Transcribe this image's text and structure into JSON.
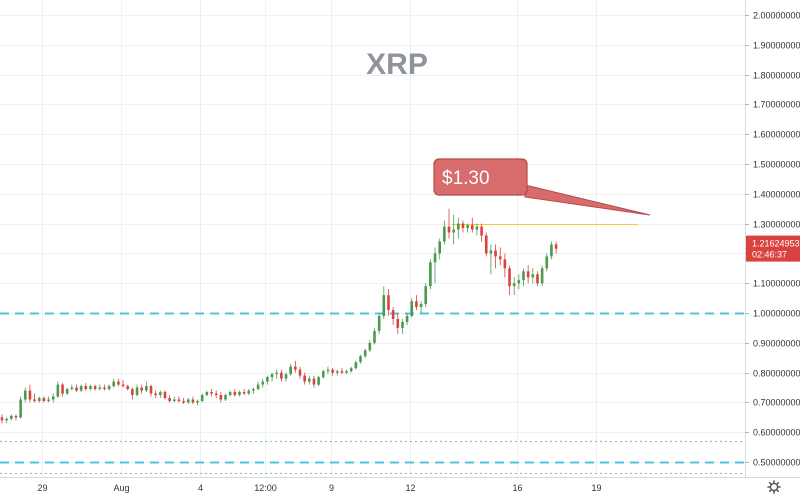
{
  "chart_data": {
    "type": "candlestick",
    "title": "XRP",
    "ylim": [
      0.45,
      2.05
    ],
    "y_ticks": [
      "2.00000000",
      "1.90000000",
      "1.80000000",
      "1.70000000",
      "1.60000000",
      "1.50000000",
      "1.40000000",
      "1.30000000",
      "1.20000000",
      "1.10000000",
      "1.00000000",
      "0.90000000",
      "0.80000000",
      "0.70000000",
      "0.60000000",
      "0.50000000"
    ],
    "x_ticks": [
      {
        "label": "29",
        "at": 9
      },
      {
        "label": "Aug",
        "at": 26
      },
      {
        "label": "4",
        "at": 43
      },
      {
        "label": "12:00",
        "at": 57
      },
      {
        "label": "9",
        "at": 71
      },
      {
        "label": "12",
        "at": 88
      },
      {
        "label": "16",
        "at": 111
      },
      {
        "label": "19",
        "at": 128
      }
    ],
    "x_range": [
      0,
      160
    ],
    "candles": [
      [
        0.65,
        0.66,
        0.63,
        0.64
      ],
      [
        0.64,
        0.65,
        0.63,
        0.645
      ],
      [
        0.645,
        0.66,
        0.64,
        0.655
      ],
      [
        0.655,
        0.66,
        0.64,
        0.65
      ],
      [
        0.65,
        0.72,
        0.645,
        0.71
      ],
      [
        0.71,
        0.75,
        0.7,
        0.74
      ],
      [
        0.74,
        0.76,
        0.7,
        0.71
      ],
      [
        0.71,
        0.73,
        0.7,
        0.705
      ],
      [
        0.705,
        0.72,
        0.7,
        0.715
      ],
      [
        0.715,
        0.72,
        0.7,
        0.705
      ],
      [
        0.705,
        0.72,
        0.7,
        0.71
      ],
      [
        0.71,
        0.73,
        0.7,
        0.72
      ],
      [
        0.72,
        0.77,
        0.715,
        0.76
      ],
      [
        0.76,
        0.765,
        0.72,
        0.73
      ],
      [
        0.73,
        0.75,
        0.725,
        0.745
      ],
      [
        0.745,
        0.76,
        0.74,
        0.75
      ],
      [
        0.75,
        0.76,
        0.735,
        0.74
      ],
      [
        0.74,
        0.76,
        0.735,
        0.755
      ],
      [
        0.755,
        0.765,
        0.74,
        0.745
      ],
      [
        0.745,
        0.76,
        0.74,
        0.755
      ],
      [
        0.755,
        0.76,
        0.74,
        0.745
      ],
      [
        0.745,
        0.76,
        0.74,
        0.75
      ],
      [
        0.75,
        0.76,
        0.74,
        0.745
      ],
      [
        0.745,
        0.76,
        0.74,
        0.755
      ],
      [
        0.755,
        0.78,
        0.75,
        0.77
      ],
      [
        0.77,
        0.78,
        0.755,
        0.76
      ],
      [
        0.76,
        0.775,
        0.75,
        0.755
      ],
      [
        0.755,
        0.76,
        0.74,
        0.745
      ],
      [
        0.745,
        0.75,
        0.71,
        0.725
      ],
      [
        0.725,
        0.76,
        0.72,
        0.75
      ],
      [
        0.75,
        0.76,
        0.73,
        0.74
      ],
      [
        0.74,
        0.77,
        0.735,
        0.755
      ],
      [
        0.755,
        0.76,
        0.72,
        0.73
      ],
      [
        0.73,
        0.74,
        0.715,
        0.725
      ],
      [
        0.725,
        0.74,
        0.715,
        0.735
      ],
      [
        0.735,
        0.74,
        0.71,
        0.715
      ],
      [
        0.715,
        0.725,
        0.7,
        0.705
      ],
      [
        0.705,
        0.72,
        0.7,
        0.71
      ],
      [
        0.71,
        0.72,
        0.7,
        0.705
      ],
      [
        0.705,
        0.715,
        0.695,
        0.7
      ],
      [
        0.7,
        0.715,
        0.695,
        0.71
      ],
      [
        0.71,
        0.72,
        0.695,
        0.7
      ],
      [
        0.7,
        0.71,
        0.69,
        0.705
      ],
      [
        0.705,
        0.73,
        0.7,
        0.725
      ],
      [
        0.725,
        0.74,
        0.72,
        0.735
      ],
      [
        0.735,
        0.745,
        0.72,
        0.73
      ],
      [
        0.73,
        0.74,
        0.715,
        0.725
      ],
      [
        0.725,
        0.735,
        0.7,
        0.71
      ],
      [
        0.71,
        0.73,
        0.705,
        0.725
      ],
      [
        0.725,
        0.74,
        0.72,
        0.735
      ],
      [
        0.735,
        0.745,
        0.72,
        0.725
      ],
      [
        0.725,
        0.74,
        0.72,
        0.735
      ],
      [
        0.735,
        0.745,
        0.725,
        0.73
      ],
      [
        0.73,
        0.745,
        0.725,
        0.74
      ],
      [
        0.74,
        0.75,
        0.73,
        0.745
      ],
      [
        0.745,
        0.77,
        0.74,
        0.76
      ],
      [
        0.76,
        0.78,
        0.75,
        0.77
      ],
      [
        0.77,
        0.79,
        0.76,
        0.785
      ],
      [
        0.785,
        0.8,
        0.77,
        0.795
      ],
      [
        0.795,
        0.81,
        0.78,
        0.8
      ],
      [
        0.8,
        0.81,
        0.77,
        0.78
      ],
      [
        0.78,
        0.8,
        0.77,
        0.795
      ],
      [
        0.795,
        0.83,
        0.79,
        0.82
      ],
      [
        0.82,
        0.84,
        0.8,
        0.81
      ],
      [
        0.81,
        0.82,
        0.78,
        0.79
      ],
      [
        0.79,
        0.8,
        0.76,
        0.77
      ],
      [
        0.77,
        0.79,
        0.76,
        0.78
      ],
      [
        0.78,
        0.79,
        0.75,
        0.76
      ],
      [
        0.76,
        0.79,
        0.755,
        0.785
      ],
      [
        0.785,
        0.81,
        0.78,
        0.805
      ],
      [
        0.805,
        0.82,
        0.795,
        0.81
      ],
      [
        0.81,
        0.815,
        0.79,
        0.8
      ],
      [
        0.8,
        0.81,
        0.79,
        0.805
      ],
      [
        0.805,
        0.815,
        0.795,
        0.8
      ],
      [
        0.8,
        0.81,
        0.795,
        0.805
      ],
      [
        0.805,
        0.82,
        0.8,
        0.815
      ],
      [
        0.815,
        0.84,
        0.81,
        0.835
      ],
      [
        0.835,
        0.86,
        0.83,
        0.855
      ],
      [
        0.855,
        0.88,
        0.85,
        0.875
      ],
      [
        0.875,
        0.91,
        0.87,
        0.9
      ],
      [
        0.9,
        0.95,
        0.895,
        0.94
      ],
      [
        0.94,
        1.0,
        0.93,
        0.99
      ],
      [
        0.99,
        1.09,
        0.98,
        1.06
      ],
      [
        1.06,
        1.08,
        0.99,
        1.01
      ],
      [
        1.01,
        1.02,
        0.96,
        0.98
      ],
      [
        0.98,
        1.0,
        0.93,
        0.95
      ],
      [
        0.95,
        0.98,
        0.93,
        0.97
      ],
      [
        0.97,
        1.0,
        0.96,
        0.99
      ],
      [
        0.99,
        1.05,
        0.985,
        1.04
      ],
      [
        1.04,
        1.06,
        1.01,
        1.02
      ],
      [
        1.02,
        1.04,
        1.0,
        1.03
      ],
      [
        1.03,
        1.1,
        1.02,
        1.09
      ],
      [
        1.09,
        1.18,
        1.08,
        1.17
      ],
      [
        1.17,
        1.22,
        1.1,
        1.2
      ],
      [
        1.2,
        1.25,
        1.18,
        1.24
      ],
      [
        1.24,
        1.31,
        1.23,
        1.29
      ],
      [
        1.29,
        1.35,
        1.25,
        1.27
      ],
      [
        1.27,
        1.33,
        1.23,
        1.28
      ],
      [
        1.28,
        1.32,
        1.25,
        1.3
      ],
      [
        1.3,
        1.31,
        1.27,
        1.285
      ],
      [
        1.285,
        1.3,
        1.27,
        1.295
      ],
      [
        1.295,
        1.32,
        1.27,
        1.28
      ],
      [
        1.28,
        1.3,
        1.26,
        1.29
      ],
      [
        1.29,
        1.3,
        1.24,
        1.26
      ],
      [
        1.26,
        1.27,
        1.19,
        1.2
      ],
      [
        1.2,
        1.23,
        1.13,
        1.21
      ],
      [
        1.21,
        1.23,
        1.15,
        1.19
      ],
      [
        1.19,
        1.22,
        1.16,
        1.18
      ],
      [
        1.18,
        1.2,
        1.12,
        1.15
      ],
      [
        1.15,
        1.16,
        1.06,
        1.09
      ],
      [
        1.09,
        1.12,
        1.06,
        1.1
      ],
      [
        1.1,
        1.13,
        1.08,
        1.11
      ],
      [
        1.11,
        1.15,
        1.09,
        1.14
      ],
      [
        1.14,
        1.16,
        1.1,
        1.12
      ],
      [
        1.12,
        1.15,
        1.1,
        1.13
      ],
      [
        1.13,
        1.14,
        1.09,
        1.1
      ],
      [
        1.1,
        1.16,
        1.09,
        1.15
      ],
      [
        1.15,
        1.2,
        1.14,
        1.19
      ],
      [
        1.19,
        1.24,
        1.18,
        1.23
      ],
      [
        1.23,
        1.24,
        1.2,
        1.216
      ]
    ],
    "colors": {
      "up": "#26a69a",
      "down": "#ef5350",
      "up_body": "#4c9a4e",
      "down_body": "#d9423f"
    },
    "horizontal_lines": [
      {
        "value": 1.0,
        "style": "dashed",
        "color": "#4fc3e6"
      },
      {
        "value": 0.5,
        "style": "dashed",
        "color": "#4fc3e6"
      },
      {
        "value": 0.57,
        "style": "dotted",
        "color": "#7bbfc9"
      },
      {
        "value": 0.465,
        "style": "dotted",
        "color": "#7bbfc9"
      }
    ],
    "resistance_line": {
      "value": 1.3,
      "color": "#f5c842",
      "from": 97,
      "to": 137
    },
    "callout": {
      "text": "$1.30",
      "color": "#d86b6b",
      "border": "#b34a4a"
    },
    "price_label": {
      "value": 1.21624953,
      "text": "1.21624953",
      "time": "02:46:37",
      "color": "#d9423f"
    },
    "grid": true,
    "settings_icon": "gear-icon"
  }
}
